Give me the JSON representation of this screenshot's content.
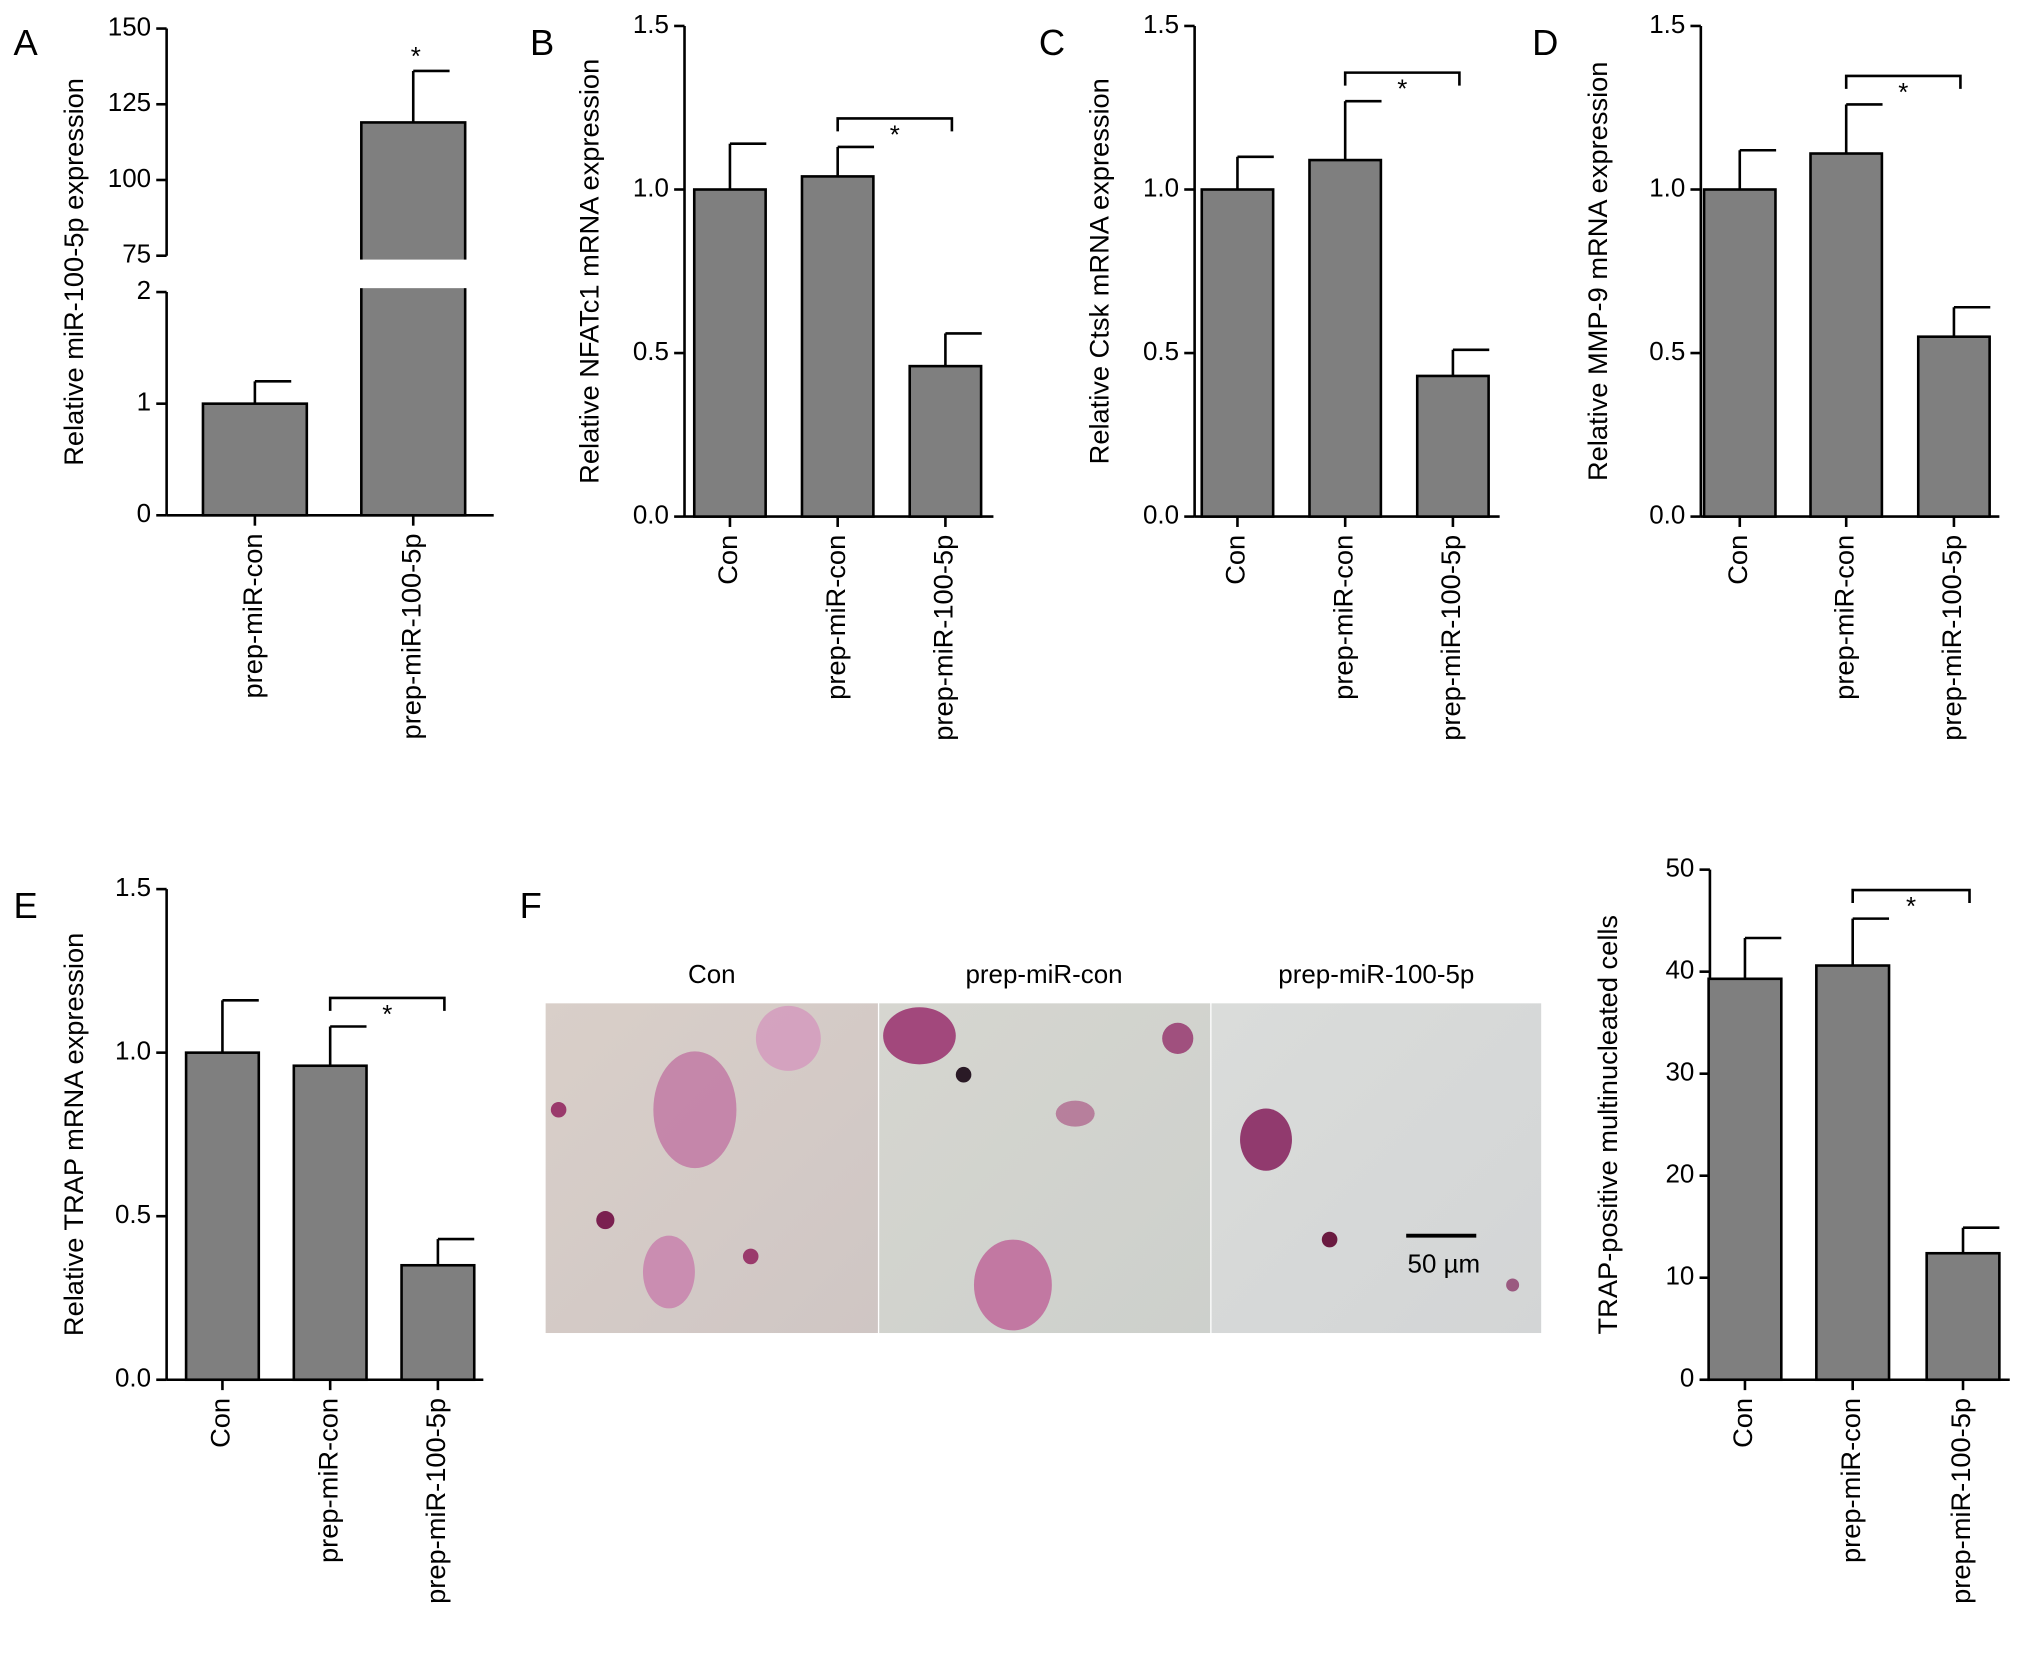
{
  "chart_data": [
    {
      "type": "bar",
      "panel": "A",
      "ylabel": "Relative miR-100-5p expression",
      "categories": [
        "prep-miR-con",
        "prep-miR-100-5p"
      ],
      "values": [
        1.0,
        119
      ],
      "errors": [
        0.2,
        17
      ],
      "color": "#7f7f7f",
      "ylim": [
        0,
        150
      ],
      "axis_break": [
        2,
        75
      ],
      "yticks": [
        0,
        1,
        2,
        75,
        100,
        125,
        150
      ],
      "significance": [
        {
          "bars": [
            1
          ],
          "label": "*"
        }
      ]
    },
    {
      "type": "bar",
      "panel": "B",
      "ylabel": "Relative NFATc1 mRNA expression",
      "categories": [
        "Con",
        "prep-miR-con",
        "prep-miR-100-5p"
      ],
      "values": [
        1.0,
        1.04,
        0.46
      ],
      "errors": [
        0.14,
        0.09,
        0.1
      ],
      "color": "#7f7f7f",
      "ylim": [
        0,
        1.5
      ],
      "yticks": [
        {
          "value": 0,
          "label": "0.0"
        },
        {
          "value": 0.5,
          "label": "0.5"
        },
        {
          "value": 1,
          "label": "1.0"
        },
        {
          "value": 1.5,
          "label": "1.5"
        }
      ],
      "significance": [
        {
          "bars": [
            1,
            2
          ],
          "label": "*"
        }
      ]
    },
    {
      "type": "bar",
      "panel": "C",
      "ylabel": "Relative Ctsk mRNA expression",
      "categories": [
        "Con",
        "prep-miR-con",
        "prep-miR-100-5p"
      ],
      "values": [
        1.0,
        1.09,
        0.43
      ],
      "errors": [
        0.1,
        0.18,
        0.08
      ],
      "color": "#7f7f7f",
      "ylim": [
        0,
        1.5
      ],
      "yticks": [
        {
          "value": 0,
          "label": "0.0"
        },
        {
          "value": 0.5,
          "label": "0.5"
        },
        {
          "value": 1,
          "label": "1.0"
        },
        {
          "value": 1.5,
          "label": "1.5"
        }
      ],
      "significance": [
        {
          "bars": [
            1,
            2
          ],
          "label": "*"
        }
      ]
    },
    {
      "type": "bar",
      "panel": "D",
      "ylabel": "Relative MMP-9 mRNA expression",
      "categories": [
        "Con",
        "prep-miR-con",
        "prep-miR-100-5p"
      ],
      "values": [
        1.0,
        1.11,
        0.55
      ],
      "errors": [
        0.12,
        0.15,
        0.09
      ],
      "color": "#7f7f7f",
      "ylim": [
        0,
        1.5
      ],
      "yticks": [
        {
          "value": 0,
          "label": "0.0"
        },
        {
          "value": 0.5,
          "label": "0.5"
        },
        {
          "value": 1,
          "label": "1.0"
        },
        {
          "value": 1.5,
          "label": "1.5"
        }
      ],
      "significance": [
        {
          "bars": [
            1,
            2
          ],
          "label": "*"
        }
      ]
    },
    {
      "type": "bar",
      "panel": "E",
      "ylabel": "Relative TRAP mRNA expression",
      "categories": [
        "Con",
        "prep-miR-con",
        "prep-miR-100-5p"
      ],
      "values": [
        1.0,
        0.96,
        0.35
      ],
      "errors": [
        0.16,
        0.12,
        0.08
      ],
      "color": "#7f7f7f",
      "ylim": [
        0,
        1.5
      ],
      "yticks": [
        {
          "value": 0,
          "label": "0.0"
        },
        {
          "value": 0.5,
          "label": "0.5"
        },
        {
          "value": 1,
          "label": "1.0"
        },
        {
          "value": 1.5,
          "label": "1.5"
        }
      ],
      "significance": [
        {
          "bars": [
            1,
            2
          ],
          "label": "*"
        }
      ]
    },
    {
      "type": "bar",
      "panel": "F",
      "ylabel": "TRAP-positive multinucleated cells",
      "categories": [
        "Con",
        "prep-miR-con",
        "prep-miR-100-5p"
      ],
      "values": [
        39.3,
        40.6,
        12.4
      ],
      "errors": [
        4,
        4.6,
        2.5
      ],
      "color": "#7f7f7f",
      "ylim": [
        0,
        50
      ],
      "yticks": [
        0,
        10,
        20,
        30,
        40,
        50
      ],
      "significance": [
        {
          "bars": [
            1,
            2
          ],
          "label": "*"
        }
      ]
    }
  ],
  "micrographs": {
    "labels": [
      "Con",
      "prep-miR-con",
      "prep-miR-100-5p"
    ],
    "scale_bar": "50 µm"
  }
}
